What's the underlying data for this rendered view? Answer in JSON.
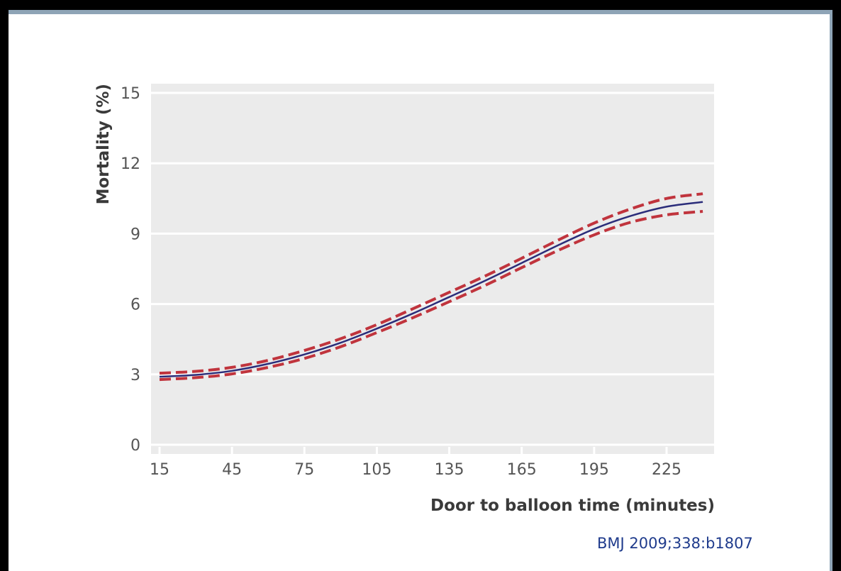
{
  "chart_data": {
    "type": "line",
    "xlabel": "Door to balloon time (minutes)",
    "ylabel": "Mortality (%)",
    "xlim": [
      15,
      240
    ],
    "ylim": [
      0,
      15
    ],
    "x_ticks": [
      15,
      45,
      75,
      105,
      135,
      165,
      195,
      225
    ],
    "y_ticks": [
      0,
      3,
      6,
      9,
      12,
      15
    ],
    "grid": "horizontal",
    "x": [
      15,
      30,
      45,
      60,
      75,
      90,
      105,
      120,
      135,
      150,
      165,
      180,
      195,
      210,
      225,
      240
    ],
    "series": [
      {
        "role": "estimate",
        "color": "#2b2d7a",
        "style": "solid",
        "values": [
          2.9,
          2.98,
          3.15,
          3.45,
          3.85,
          4.35,
          4.95,
          5.6,
          6.3,
          7.0,
          7.75,
          8.5,
          9.2,
          9.75,
          10.15,
          10.35
        ]
      },
      {
        "role": "upper confidence limit",
        "color": "#c0343d",
        "style": "dashed",
        "values": [
          3.05,
          3.13,
          3.3,
          3.6,
          4.02,
          4.52,
          5.12,
          5.8,
          6.5,
          7.2,
          7.95,
          8.72,
          9.45,
          10.05,
          10.5,
          10.7
        ]
      },
      {
        "role": "lower confidence limit",
        "color": "#c0343d",
        "style": "dashed",
        "values": [
          2.78,
          2.86,
          3.02,
          3.3,
          3.68,
          4.18,
          4.78,
          5.42,
          6.1,
          6.8,
          7.55,
          8.28,
          8.95,
          9.48,
          9.8,
          9.95
        ]
      }
    ]
  },
  "citation": "BMJ 2009;338:b1807"
}
